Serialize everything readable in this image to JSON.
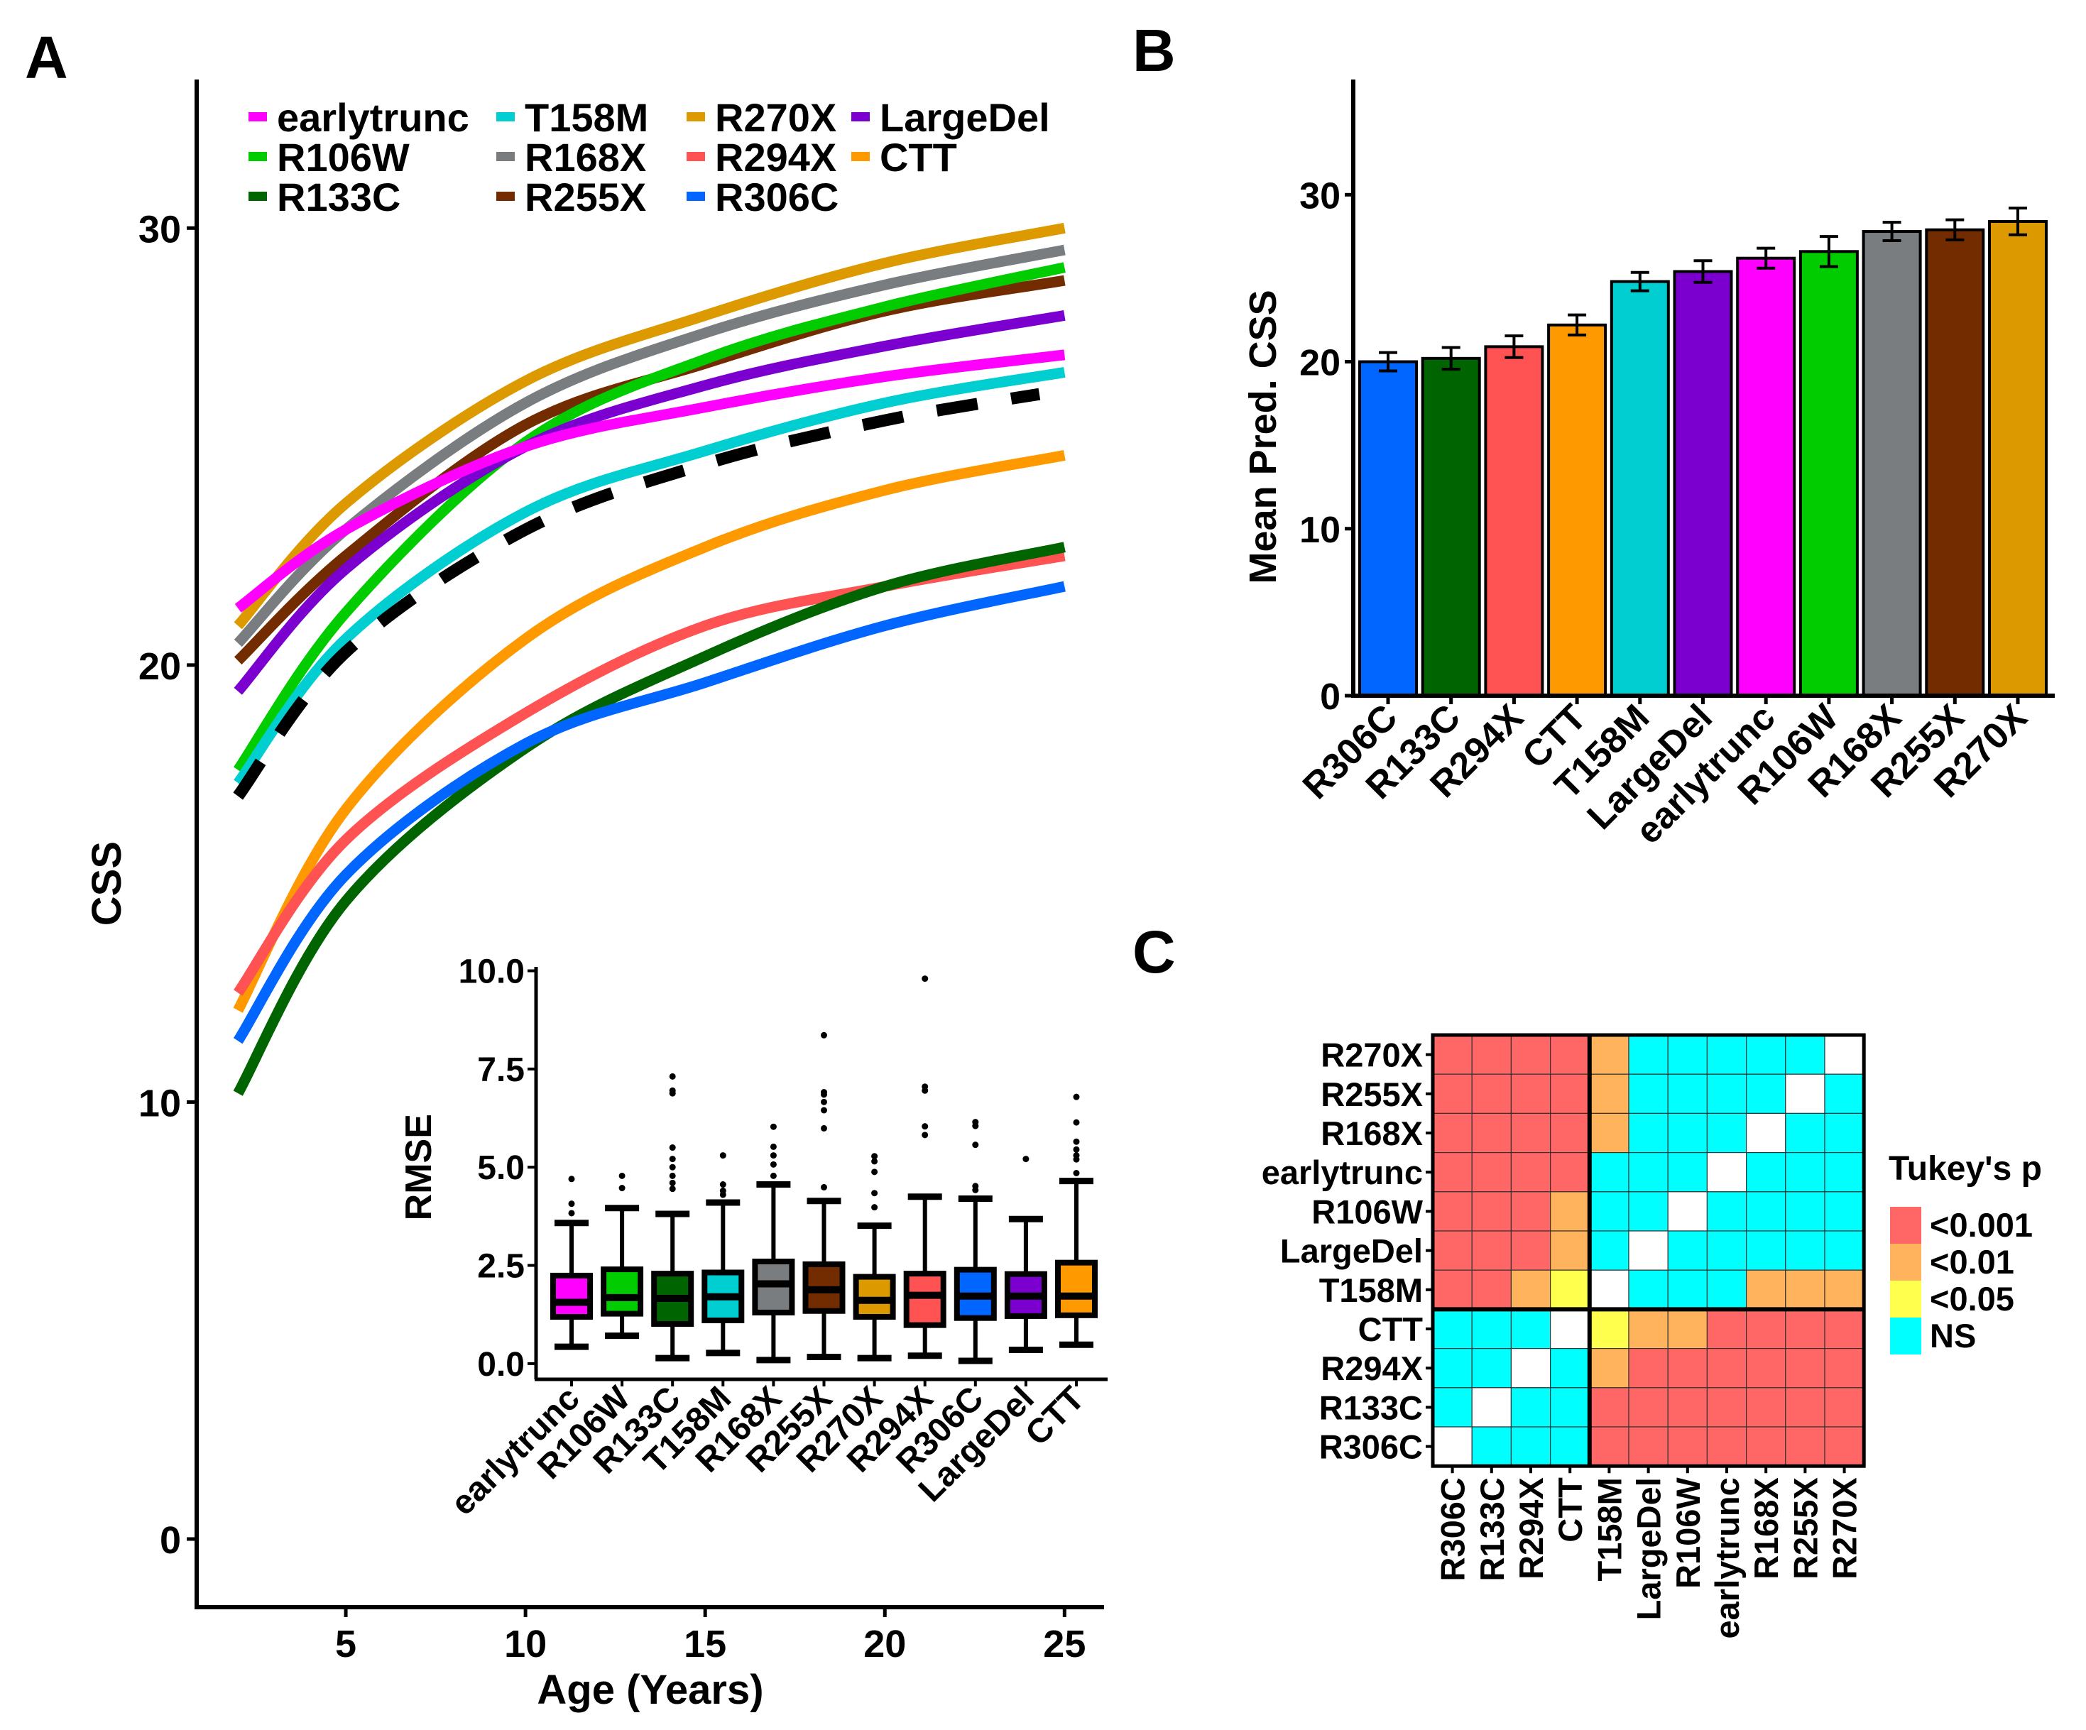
{
  "panel_labels": {
    "a": "A",
    "b": "B",
    "c": "C"
  },
  "colors": {
    "earlytrunc": "#FF00FF",
    "R106W": "#00CC00",
    "R133C": "#006400",
    "T158M": "#00CED1",
    "R168X": "#797D7F",
    "R255X": "#722C00",
    "R270X": "#DD9900",
    "R294X": "#FF5252",
    "R306C": "#0066FF",
    "LargeDel": "#7B00D0",
    "CTT": "#FF9900",
    "reference": "#000000"
  },
  "chart_data": [
    {
      "panel": "A",
      "type": "line",
      "xlabel": "Age (Years)",
      "ylabel": "CSS",
      "xlim": [
        0.85,
        26.1
      ],
      "ylim": [
        -1.56,
        33.4
      ],
      "xticks": [
        5,
        10,
        15,
        20,
        25
      ],
      "yticks": [
        0,
        10,
        20,
        30
      ],
      "grid": false,
      "legend_position": "top",
      "legend": [
        "earlytrunc",
        "R106W",
        "R133C",
        "T158M",
        "R168X",
        "R255X",
        "R270X",
        "R294X",
        "R306C",
        "LargeDel",
        "CTT"
      ],
      "x": [
        2,
        5,
        10,
        15,
        20,
        25
      ],
      "series": [
        {
          "name": "R270X",
          "values": [
            20.9,
            23.7,
            26.5,
            28.0,
            29.2,
            30.0
          ]
        },
        {
          "name": "R168X",
          "values": [
            20.5,
            23.1,
            26.0,
            27.6,
            28.7,
            29.5
          ]
        },
        {
          "name": "R255X",
          "values": [
            20.1,
            22.5,
            25.5,
            26.9,
            28.1,
            28.8
          ]
        },
        {
          "name": "R106W",
          "values": [
            17.6,
            21.2,
            25.1,
            27.0,
            28.2,
            29.1
          ]
        },
        {
          "name": "LargeDel",
          "values": [
            19.4,
            22.2,
            25.0,
            26.4,
            27.3,
            28.0
          ]
        },
        {
          "name": "earlytrunc",
          "values": [
            21.3,
            23.1,
            25.0,
            25.9,
            26.6,
            27.1
          ]
        },
        {
          "name": "T158M",
          "values": [
            17.3,
            20.6,
            23.5,
            24.9,
            26.0,
            26.7
          ]
        },
        {
          "style": "dashed",
          "values": [
            17.0,
            20.3,
            23.1,
            24.6,
            25.6,
            26.4
          ]
        },
        {
          "name": "CTT",
          "values": [
            12.1,
            16.7,
            20.6,
            22.7,
            24.0,
            24.8
          ]
        },
        {
          "name": "R294X",
          "values": [
            12.5,
            16.0,
            18.9,
            20.9,
            21.8,
            22.5
          ]
        },
        {
          "name": "R133C",
          "values": [
            10.2,
            14.6,
            18.1,
            20.2,
            21.8,
            22.7
          ]
        },
        {
          "name": "R306C",
          "values": [
            11.4,
            15.2,
            18.2,
            19.6,
            20.9,
            21.8
          ]
        }
      ]
    },
    {
      "panel": "A-inset",
      "type": "box",
      "ylabel": "RMSE",
      "ylim": [
        -0.4,
        10.1
      ],
      "yticks": [
        0,
        2.5,
        5,
        7.5,
        10
      ],
      "ytick_labels": [
        "0.0",
        "2.5",
        "5.0",
        "7.5",
        "10.0"
      ],
      "categories": [
        "earlytrunc",
        "R106W",
        "R133C",
        "T158M",
        "R168X",
        "R255X",
        "R270X",
        "R294X",
        "R306C",
        "LargeDel",
        "CTT"
      ],
      "boxes": [
        {
          "min": 0.43,
          "q1": 1.19,
          "median": 1.56,
          "q3": 2.24,
          "max": 3.58,
          "outliers": [
            3.83,
            4.07,
            4.7
          ]
        },
        {
          "min": 0.71,
          "q1": 1.27,
          "median": 1.68,
          "q3": 2.4,
          "max": 3.96,
          "outliers": [
            4.47,
            4.78
          ]
        },
        {
          "min": 0.14,
          "q1": 1.01,
          "median": 1.66,
          "q3": 2.29,
          "max": 3.81,
          "outliers": [
            4.45,
            4.6,
            4.78,
            5.0,
            5.21,
            5.5,
            6.88,
            6.95,
            7.31
          ]
        },
        {
          "min": 0.27,
          "q1": 1.1,
          "median": 1.7,
          "q3": 2.32,
          "max": 4.1,
          "outliers": [
            4.3,
            4.4,
            4.56,
            5.3
          ]
        },
        {
          "min": 0.09,
          "q1": 1.3,
          "median": 2.03,
          "q3": 2.6,
          "max": 4.56,
          "outliers": [
            4.78,
            5.07,
            5.3,
            5.52,
            6.03
          ]
        },
        {
          "min": 0.17,
          "q1": 1.34,
          "median": 1.88,
          "q3": 2.53,
          "max": 4.14,
          "outliers": [
            4.49,
            5.99,
            6.45,
            6.66,
            6.85,
            6.91,
            8.36
          ]
        },
        {
          "min": 0.14,
          "q1": 1.19,
          "median": 1.61,
          "q3": 2.21,
          "max": 3.51,
          "outliers": [
            3.98,
            4.34,
            4.88,
            5.15,
            5.28
          ]
        },
        {
          "min": 0.2,
          "q1": 0.98,
          "median": 1.74,
          "q3": 2.29,
          "max": 4.25,
          "outliers": [
            5.82,
            6.04,
            6.95,
            7.05,
            9.8
          ]
        },
        {
          "min": 0.07,
          "q1": 1.16,
          "median": 1.72,
          "q3": 2.39,
          "max": 4.2,
          "outliers": [
            4.42,
            4.52,
            5.57,
            6.05,
            6.15
          ]
        },
        {
          "min": 0.35,
          "q1": 1.21,
          "median": 1.72,
          "q3": 2.28,
          "max": 3.68,
          "outliers": [
            5.21
          ]
        },
        {
          "min": 0.48,
          "q1": 1.23,
          "median": 1.72,
          "q3": 2.57,
          "max": 4.65,
          "outliers": [
            4.85,
            5.2,
            5.3,
            5.45,
            5.65,
            6.14,
            6.79
          ]
        }
      ]
    },
    {
      "panel": "B",
      "type": "bar",
      "ylabel": "Mean Pred. CSS",
      "ylim": [
        0,
        36.9
      ],
      "yticks": [
        0,
        10,
        20,
        30
      ],
      "categories": [
        "R306C",
        "R133C",
        "R294X",
        "CTT",
        "T158M",
        "LargeDel",
        "earlytrunc",
        "R106W",
        "R168X",
        "R255X",
        "R270X"
      ],
      "values": [
        20.0,
        20.2,
        20.9,
        22.2,
        24.8,
        25.4,
        26.2,
        26.6,
        27.8,
        27.9,
        28.4
      ],
      "errors": [
        0.55,
        0.65,
        0.65,
        0.6,
        0.55,
        0.65,
        0.6,
        0.9,
        0.55,
        0.6,
        0.8
      ]
    },
    {
      "panel": "C",
      "type": "heatmap",
      "rows": [
        "R270X",
        "R255X",
        "R168X",
        "earlytrunc",
        "R106W",
        "LargeDel",
        "T158M",
        "CTT",
        "R294X",
        "R133C",
        "R306C"
      ],
      "cols": [
        "R306C",
        "R133C",
        "R294X",
        "CTT",
        "T158M",
        "LargeDel",
        "R106W",
        "earlytrunc",
        "R168X",
        "R255X",
        "R270X"
      ],
      "matrix": [
        [
          "<0.001",
          "<0.001",
          "<0.001",
          "<0.001",
          "<0.01",
          "NS",
          "NS",
          "NS",
          "NS",
          "NS",
          ""
        ],
        [
          "<0.001",
          "<0.001",
          "<0.001",
          "<0.001",
          "<0.01",
          "NS",
          "NS",
          "NS",
          "NS",
          "",
          "NS"
        ],
        [
          "<0.001",
          "<0.001",
          "<0.001",
          "<0.001",
          "<0.01",
          "NS",
          "NS",
          "NS",
          "",
          "NS",
          "NS"
        ],
        [
          "<0.001",
          "<0.001",
          "<0.001",
          "<0.001",
          "NS",
          "NS",
          "NS",
          "",
          "NS",
          "NS",
          "NS"
        ],
        [
          "<0.001",
          "<0.001",
          "<0.001",
          "<0.01",
          "NS",
          "NS",
          "",
          "NS",
          "NS",
          "NS",
          "NS"
        ],
        [
          "<0.001",
          "<0.001",
          "<0.001",
          "<0.01",
          "NS",
          "",
          "NS",
          "NS",
          "NS",
          "NS",
          "NS"
        ],
        [
          "<0.001",
          "<0.001",
          "<0.01",
          "<0.05",
          "",
          "NS",
          "NS",
          "NS",
          "<0.01",
          "<0.01",
          "<0.01"
        ],
        [
          "NS",
          "NS",
          "NS",
          "",
          "<0.05",
          "<0.01",
          "<0.01",
          "<0.001",
          "<0.001",
          "<0.001",
          "<0.001"
        ],
        [
          "NS",
          "NS",
          "",
          "NS",
          "<0.01",
          "<0.001",
          "<0.001",
          "<0.001",
          "<0.001",
          "<0.001",
          "<0.001"
        ],
        [
          "NS",
          "",
          "NS",
          "NS",
          "<0.001",
          "<0.001",
          "<0.001",
          "<0.001",
          "<0.001",
          "<0.001",
          "<0.001"
        ],
        [
          "",
          "NS",
          "NS",
          "NS",
          "<0.001",
          "<0.001",
          "<0.001",
          "<0.001",
          "<0.001",
          "<0.001",
          "<0.001"
        ]
      ],
      "legend_title": "Tukey's p",
      "legend_position": "right",
      "levels": [
        {
          "label": "<0.001",
          "color": "#FF6666"
        },
        {
          "label": "<0.01",
          "color": "#FFB35C"
        },
        {
          "label": "<0.05",
          "color": "#FFFF4D"
        },
        {
          "label": "NS",
          "color": "#00FFFF"
        }
      ]
    }
  ]
}
